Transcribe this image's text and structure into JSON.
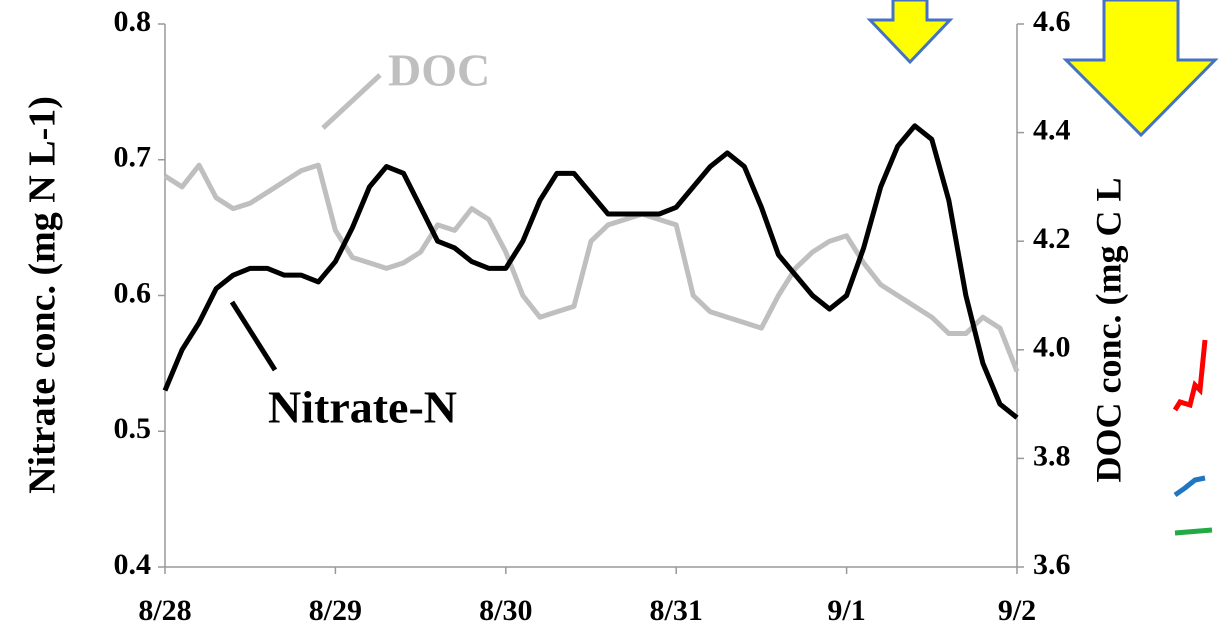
{
  "chart_data": {
    "type": "line",
    "y_label": "Nitrate conc. (mg N L-1)",
    "y2_label": "DOC conc. (mg C L",
    "annotations": [
      "DOC",
      "Nitrate-N"
    ],
    "x": [
      0,
      0.1,
      0.2,
      0.3,
      0.4,
      0.5,
      0.6,
      0.7,
      0.8,
      0.9,
      1,
      1.1,
      1.2,
      1.3,
      1.4,
      1.5,
      1.6,
      1.7,
      1.8,
      1.9,
      2,
      2.1,
      2.2,
      2.3,
      2.4,
      2.5,
      2.6,
      2.7,
      2.8,
      2.9,
      3,
      3.1,
      3.2,
      3.3,
      3.4,
      3.5,
      3.6,
      3.7,
      3.8,
      3.9,
      4,
      4.1,
      4.2,
      4.3,
      4.4,
      4.5,
      4.6,
      4.7,
      4.8,
      4.9,
      5
    ],
    "xlim": [
      0,
      5
    ],
    "xticks": [
      {
        "value": 0,
        "label": "8/28"
      },
      {
        "value": 1,
        "label": "8/29"
      },
      {
        "value": 2,
        "label": "8/30"
      },
      {
        "value": 3,
        "label": "8/31"
      },
      {
        "value": 4,
        "label": "9/1"
      },
      {
        "value": 5,
        "label": "9/2"
      }
    ],
    "ylim": [
      0.4,
      0.8
    ],
    "yticks": [
      0.4,
      0.5,
      0.6,
      0.7,
      0.8
    ],
    "y2lim": [
      3.6,
      4.6
    ],
    "y2ticks": [
      3.6,
      3.8,
      {
        "value": 4,
        "label": "4.0"
      },
      4.2,
      4.4,
      4.6
    ],
    "series": [
      {
        "name": "Nitrate-N",
        "color": "#000000",
        "values": [
          0.53,
          0.56,
          0.58,
          0.605,
          0.615,
          0.62,
          0.62,
          0.615,
          0.615,
          0.61,
          0.625,
          0.65,
          0.68,
          0.695,
          0.69,
          0.665,
          0.64,
          0.635,
          0.625,
          0.62,
          0.62,
          0.64,
          0.67,
          0.69,
          0.69,
          0.675,
          0.66,
          0.66,
          0.66,
          0.66,
          0.665,
          0.68,
          0.695,
          0.705,
          0.695,
          0.665,
          0.63,
          0.615,
          0.6,
          0.59,
          0.6,
          0.635,
          0.68,
          0.71,
          0.725,
          0.715,
          0.67,
          0.6,
          0.55,
          0.52,
          0.51
        ]
      },
      {
        "name": "DOC",
        "color": "#bfbfbf",
        "axis": "y2",
        "values": [
          4.32,
          4.3,
          4.34,
          4.28,
          4.26,
          4.27,
          4.29,
          4.31,
          4.33,
          4.34,
          4.22,
          4.17,
          4.16,
          4.15,
          4.16,
          4.18,
          4.23,
          4.22,
          4.26,
          4.24,
          4.18,
          4.1,
          4.06,
          4.07,
          4.08,
          4.2,
          4.23,
          4.24,
          4.25,
          4.24,
          4.23,
          4.1,
          4.07,
          4.06,
          4.05,
          4.04,
          4.1,
          4.15,
          4.18,
          4.2,
          4.21,
          4.16,
          4.12,
          4.1,
          4.08,
          4.06,
          4.03,
          4.03,
          4.06,
          4.04,
          3.96
        ]
      }
    ]
  }
}
